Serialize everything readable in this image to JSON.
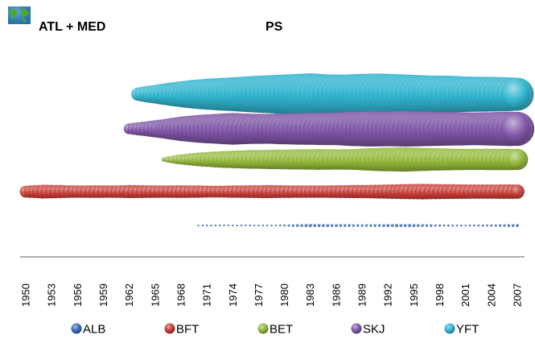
{
  "header": {
    "region_label": "ATL + MED",
    "gear_label": "PS",
    "logo_icon": "globe-icon"
  },
  "chart_data": {
    "type": "bubble-timeline",
    "title": "PS",
    "region": "ATL + MED",
    "x_tick_labels": [
      "1950",
      "1953",
      "1956",
      "1959",
      "1962",
      "1965",
      "1968",
      "1971",
      "1974",
      "1977",
      "1980",
      "1983",
      "1986",
      "1989",
      "1992",
      "1995",
      "1998",
      "2001",
      "2004",
      "2007"
    ],
    "x_range": [
      1950,
      2007
    ],
    "value_scale": "relative (0-1), read from bubble size",
    "series": [
      {
        "name": "YFT",
        "color": "#31b5cf",
        "points": [
          {
            "x": 1963,
            "v": 0.1
          },
          {
            "x": 1965,
            "v": 0.2
          },
          {
            "x": 1967,
            "v": 0.32
          },
          {
            "x": 1969,
            "v": 0.45
          },
          {
            "x": 1971,
            "v": 0.55
          },
          {
            "x": 1973,
            "v": 0.62
          },
          {
            "x": 1975,
            "v": 0.7
          },
          {
            "x": 1977,
            "v": 0.78
          },
          {
            "x": 1979,
            "v": 0.85
          },
          {
            "x": 1981,
            "v": 0.92
          },
          {
            "x": 1983,
            "v": 1.0
          },
          {
            "x": 1985,
            "v": 0.9
          },
          {
            "x": 1987,
            "v": 0.88
          },
          {
            "x": 1989,
            "v": 0.95
          },
          {
            "x": 1991,
            "v": 0.98
          },
          {
            "x": 1993,
            "v": 0.92
          },
          {
            "x": 1995,
            "v": 0.85
          },
          {
            "x": 1997,
            "v": 0.8
          },
          {
            "x": 1999,
            "v": 0.78
          },
          {
            "x": 2001,
            "v": 0.72
          },
          {
            "x": 2003,
            "v": 0.7
          },
          {
            "x": 2005,
            "v": 0.68
          },
          {
            "x": 2007,
            "v": 0.62
          }
        ]
      },
      {
        "name": "SKJ",
        "color": "#7f56a6",
        "points": [
          {
            "x": 1962,
            "v": 0.08
          },
          {
            "x": 1964,
            "v": 0.15
          },
          {
            "x": 1966,
            "v": 0.25
          },
          {
            "x": 1968,
            "v": 0.4
          },
          {
            "x": 1970,
            "v": 0.52
          },
          {
            "x": 1972,
            "v": 0.6
          },
          {
            "x": 1974,
            "v": 0.68
          },
          {
            "x": 1976,
            "v": 0.62
          },
          {
            "x": 1978,
            "v": 0.6
          },
          {
            "x": 1980,
            "v": 0.65
          },
          {
            "x": 1982,
            "v": 0.68
          },
          {
            "x": 1984,
            "v": 0.7
          },
          {
            "x": 1986,
            "v": 0.72
          },
          {
            "x": 1988,
            "v": 0.8
          },
          {
            "x": 1990,
            "v": 0.85
          },
          {
            "x": 1992,
            "v": 0.82
          },
          {
            "x": 1994,
            "v": 0.85
          },
          {
            "x": 1996,
            "v": 0.82
          },
          {
            "x": 1998,
            "v": 0.78
          },
          {
            "x": 2000,
            "v": 0.75
          },
          {
            "x": 2002,
            "v": 0.72
          },
          {
            "x": 2004,
            "v": 0.75
          },
          {
            "x": 2006,
            "v": 0.8
          },
          {
            "x": 2007,
            "v": 0.78
          }
        ]
      },
      {
        "name": "BET",
        "color": "#93b83a",
        "points": [
          {
            "x": 1966,
            "v": 0.02
          },
          {
            "x": 1968,
            "v": 0.1
          },
          {
            "x": 1970,
            "v": 0.18
          },
          {
            "x": 1972,
            "v": 0.25
          },
          {
            "x": 1974,
            "v": 0.3
          },
          {
            "x": 1976,
            "v": 0.34
          },
          {
            "x": 1978,
            "v": 0.36
          },
          {
            "x": 1980,
            "v": 0.38
          },
          {
            "x": 1982,
            "v": 0.4
          },
          {
            "x": 1984,
            "v": 0.42
          },
          {
            "x": 1986,
            "v": 0.4
          },
          {
            "x": 1988,
            "v": 0.42
          },
          {
            "x": 1990,
            "v": 0.5
          },
          {
            "x": 1992,
            "v": 0.55
          },
          {
            "x": 1994,
            "v": 0.58
          },
          {
            "x": 1996,
            "v": 0.52
          },
          {
            "x": 1998,
            "v": 0.48
          },
          {
            "x": 2000,
            "v": 0.45
          },
          {
            "x": 2002,
            "v": 0.44
          },
          {
            "x": 2004,
            "v": 0.45
          },
          {
            "x": 2006,
            "v": 0.45
          },
          {
            "x": 2007,
            "v": 0.44
          }
        ]
      },
      {
        "name": "BFT",
        "color": "#c63b35",
        "points": [
          {
            "x": 1950,
            "v": 0.28
          },
          {
            "x": 1952,
            "v": 0.38
          },
          {
            "x": 1954,
            "v": 0.34
          },
          {
            "x": 1956,
            "v": 0.3
          },
          {
            "x": 1958,
            "v": 0.32
          },
          {
            "x": 1960,
            "v": 0.3
          },
          {
            "x": 1962,
            "v": 0.34
          },
          {
            "x": 1964,
            "v": 0.32
          },
          {
            "x": 1966,
            "v": 0.3
          },
          {
            "x": 1968,
            "v": 0.32
          },
          {
            "x": 1970,
            "v": 0.3
          },
          {
            "x": 1972,
            "v": 0.28
          },
          {
            "x": 1974,
            "v": 0.3
          },
          {
            "x": 1976,
            "v": 0.32
          },
          {
            "x": 1978,
            "v": 0.34
          },
          {
            "x": 1980,
            "v": 0.32
          },
          {
            "x": 1982,
            "v": 0.3
          },
          {
            "x": 1984,
            "v": 0.3
          },
          {
            "x": 1986,
            "v": 0.32
          },
          {
            "x": 1988,
            "v": 0.34
          },
          {
            "x": 1990,
            "v": 0.36
          },
          {
            "x": 1992,
            "v": 0.4
          },
          {
            "x": 1994,
            "v": 0.45
          },
          {
            "x": 1996,
            "v": 0.48
          },
          {
            "x": 1998,
            "v": 0.45
          },
          {
            "x": 2000,
            "v": 0.42
          },
          {
            "x": 2002,
            "v": 0.4
          },
          {
            "x": 2004,
            "v": 0.4
          },
          {
            "x": 2006,
            "v": 0.42
          },
          {
            "x": 2007,
            "v": 0.4
          }
        ]
      },
      {
        "name": "ALB",
        "color": "#3a6bb5",
        "points": [
          {
            "x": 1970,
            "v": 0.03
          },
          {
            "x": 1973,
            "v": 0.02
          },
          {
            "x": 1976,
            "v": 0.02
          },
          {
            "x": 1979,
            "v": 0.03
          },
          {
            "x": 1981,
            "v": 0.05
          },
          {
            "x": 1983,
            "v": 0.08
          },
          {
            "x": 1985,
            "v": 0.07
          },
          {
            "x": 1987,
            "v": 0.06
          },
          {
            "x": 1989,
            "v": 0.05
          },
          {
            "x": 1991,
            "v": 0.06
          },
          {
            "x": 1993,
            "v": 0.08
          },
          {
            "x": 1995,
            "v": 0.07
          },
          {
            "x": 1997,
            "v": 0.05
          },
          {
            "x": 1999,
            "v": 0.04
          },
          {
            "x": 2001,
            "v": 0.03
          },
          {
            "x": 2003,
            "v": 0.04
          },
          {
            "x": 2005,
            "v": 0.05
          },
          {
            "x": 2007,
            "v": 0.07
          }
        ]
      }
    ],
    "legend": {
      "placement": "bottom",
      "entries": [
        "ALB",
        "BFT",
        "BET",
        "SKJ",
        "YFT"
      ]
    },
    "grid": false
  }
}
